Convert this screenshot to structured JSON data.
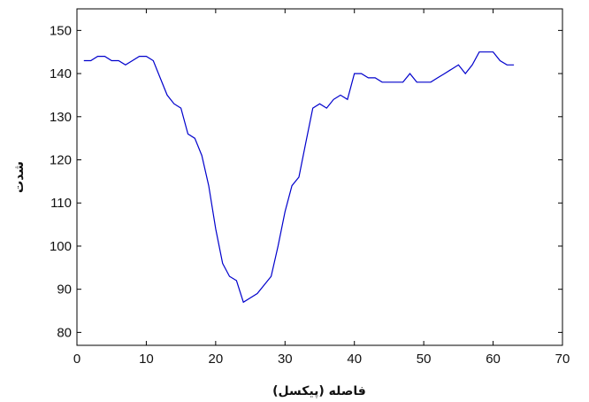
{
  "chart_data": {
    "type": "line",
    "title": "",
    "xlabel": "فاصله (پیکسل)",
    "ylabel": "شدت",
    "xlim": [
      0,
      70
    ],
    "ylim": [
      77,
      155
    ],
    "xticks": [
      0,
      10,
      20,
      30,
      40,
      50,
      60,
      70
    ],
    "yticks": [
      80,
      90,
      100,
      110,
      120,
      130,
      140,
      150
    ],
    "grid": false,
    "line_color": "#0000cc",
    "series": [
      {
        "x": [
          1,
          2,
          3,
          4,
          5,
          6,
          7,
          8,
          9,
          10,
          11,
          12,
          13,
          14,
          15,
          16,
          17,
          18,
          19,
          20,
          21,
          22,
          23,
          24,
          25,
          26,
          27,
          28,
          29,
          30,
          31,
          32,
          33,
          34,
          35,
          36,
          37,
          38,
          39,
          40,
          41,
          42,
          43,
          44,
          45,
          46,
          47,
          48,
          49,
          50,
          51,
          52,
          53,
          54,
          55,
          56,
          57,
          58,
          59,
          60,
          61,
          62,
          63
        ],
        "y": [
          143,
          143,
          144,
          144,
          143,
          143,
          142,
          143,
          144,
          144,
          143,
          139,
          135,
          133,
          132,
          126,
          125,
          121,
          114,
          104,
          96,
          93,
          92,
          87,
          88,
          89,
          91,
          93,
          100,
          108,
          114,
          116,
          124,
          132,
          133,
          132,
          134,
          135,
          134,
          140,
          140,
          139,
          139,
          138,
          138,
          138,
          138,
          140,
          138,
          138,
          138,
          139,
          140,
          141,
          142,
          140,
          142,
          145,
          145,
          145,
          143,
          142,
          142
        ]
      }
    ]
  }
}
